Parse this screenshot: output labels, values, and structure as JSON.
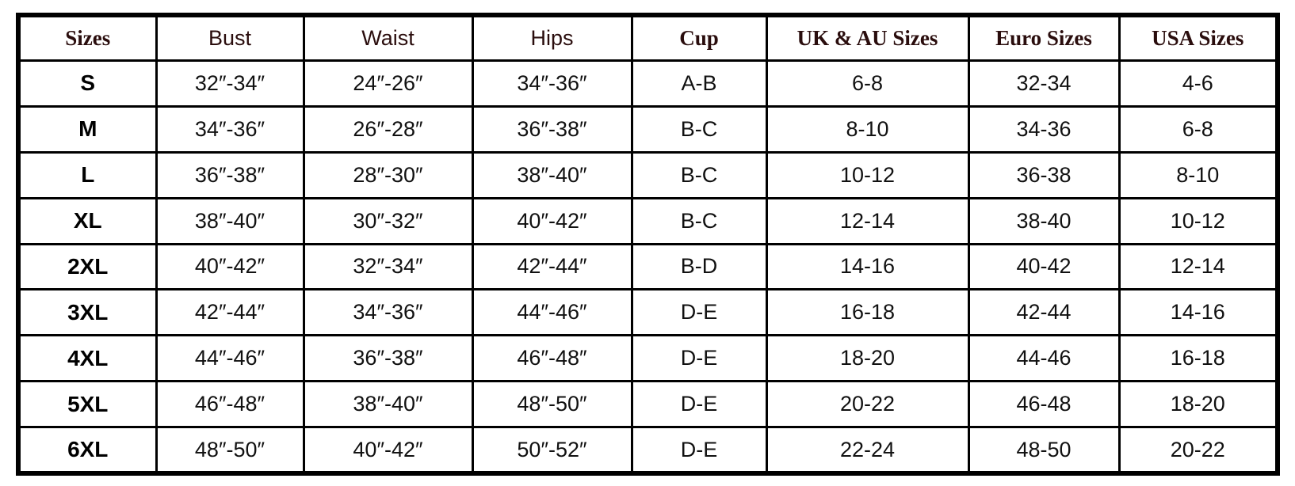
{
  "size_chart": {
    "columns": [
      "Sizes",
      "Bust",
      "Waist",
      "Hips",
      "Cup",
      "UK & AU Sizes",
      "Euro Sizes",
      "USA Sizes"
    ],
    "rows": [
      [
        "S",
        "32″-34″",
        "24″-26″",
        "34″-36″",
        "A-B",
        "6-8",
        "32-34",
        "4-6"
      ],
      [
        "M",
        "34″-36″",
        "26″-28″",
        "36″-38″",
        "B-C",
        "8-10",
        "34-36",
        "6-8"
      ],
      [
        "L",
        "36″-38″",
        "28″-30″",
        "38″-40″",
        "B-C",
        "10-12",
        "36-38",
        "8-10"
      ],
      [
        "XL",
        "38″-40″",
        "30″-32″",
        "40″-42″",
        "B-C",
        "12-14",
        "38-40",
        "10-12"
      ],
      [
        "2XL",
        "40″-42″",
        "32″-34″",
        "42″-44″",
        "B-D",
        "14-16",
        "40-42",
        "12-14"
      ],
      [
        "3XL",
        "42″-44″",
        "34″-36″",
        "44″-46″",
        "D-E",
        "16-18",
        "42-44",
        "14-16"
      ],
      [
        "4XL",
        "44″-46″",
        "36″-38″",
        "46″-48″",
        "D-E",
        "18-20",
        "44-46",
        "16-18"
      ],
      [
        "5XL",
        "46″-48″",
        "38″-40″",
        "48″-50″",
        "D-E",
        "20-22",
        "46-48",
        "18-20"
      ],
      [
        "6XL",
        "48″-50″",
        "40″-42″",
        "50″-52″",
        "D-E",
        "22-24",
        "48-50",
        "20-22"
      ]
    ]
  }
}
